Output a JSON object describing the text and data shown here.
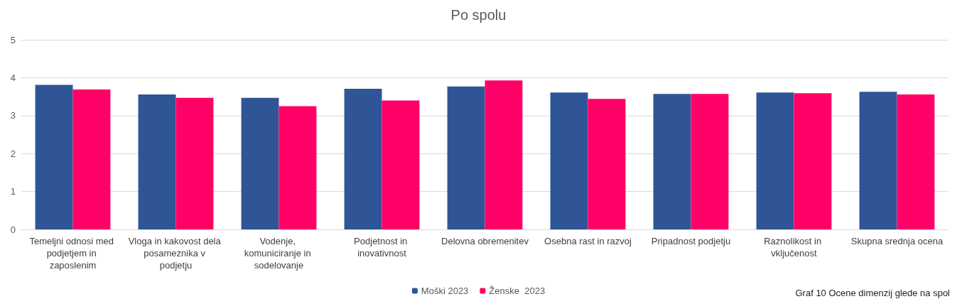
{
  "chart_data": {
    "type": "bar",
    "title": "Po spolu",
    "categories": [
      "Temeljni odnosi med podjetjem in zaposlenim",
      "Vloga in kakovost dela posameznika v podjetju",
      "Vodenje, komuniciranje in sodelovanje",
      "Podjetnost in inovativnost",
      "Delovna obremenitev",
      "Osebna rast in razvoj",
      "Pripadnost podjetju",
      "Raznolikost in vključenost",
      "Skupna srednja ocena"
    ],
    "series": [
      {
        "name": "Moški 2023",
        "color": "#2f5597",
        "values": [
          3.81,
          3.56,
          3.47,
          3.71,
          3.77,
          3.61,
          3.57,
          3.61,
          3.63
        ]
      },
      {
        "name": "Ženske  2023",
        "color": "#ff0066",
        "values": [
          3.69,
          3.47,
          3.25,
          3.4,
          3.93,
          3.44,
          3.57,
          3.59,
          3.56
        ]
      }
    ],
    "ylim": [
      0,
      5
    ],
    "yticks": [
      0,
      1,
      2,
      3,
      4,
      5
    ],
    "grid": "y",
    "legend": "bottom",
    "annotations": [
      "Graf 10 Ocene dimenzij glede na spol"
    ]
  }
}
